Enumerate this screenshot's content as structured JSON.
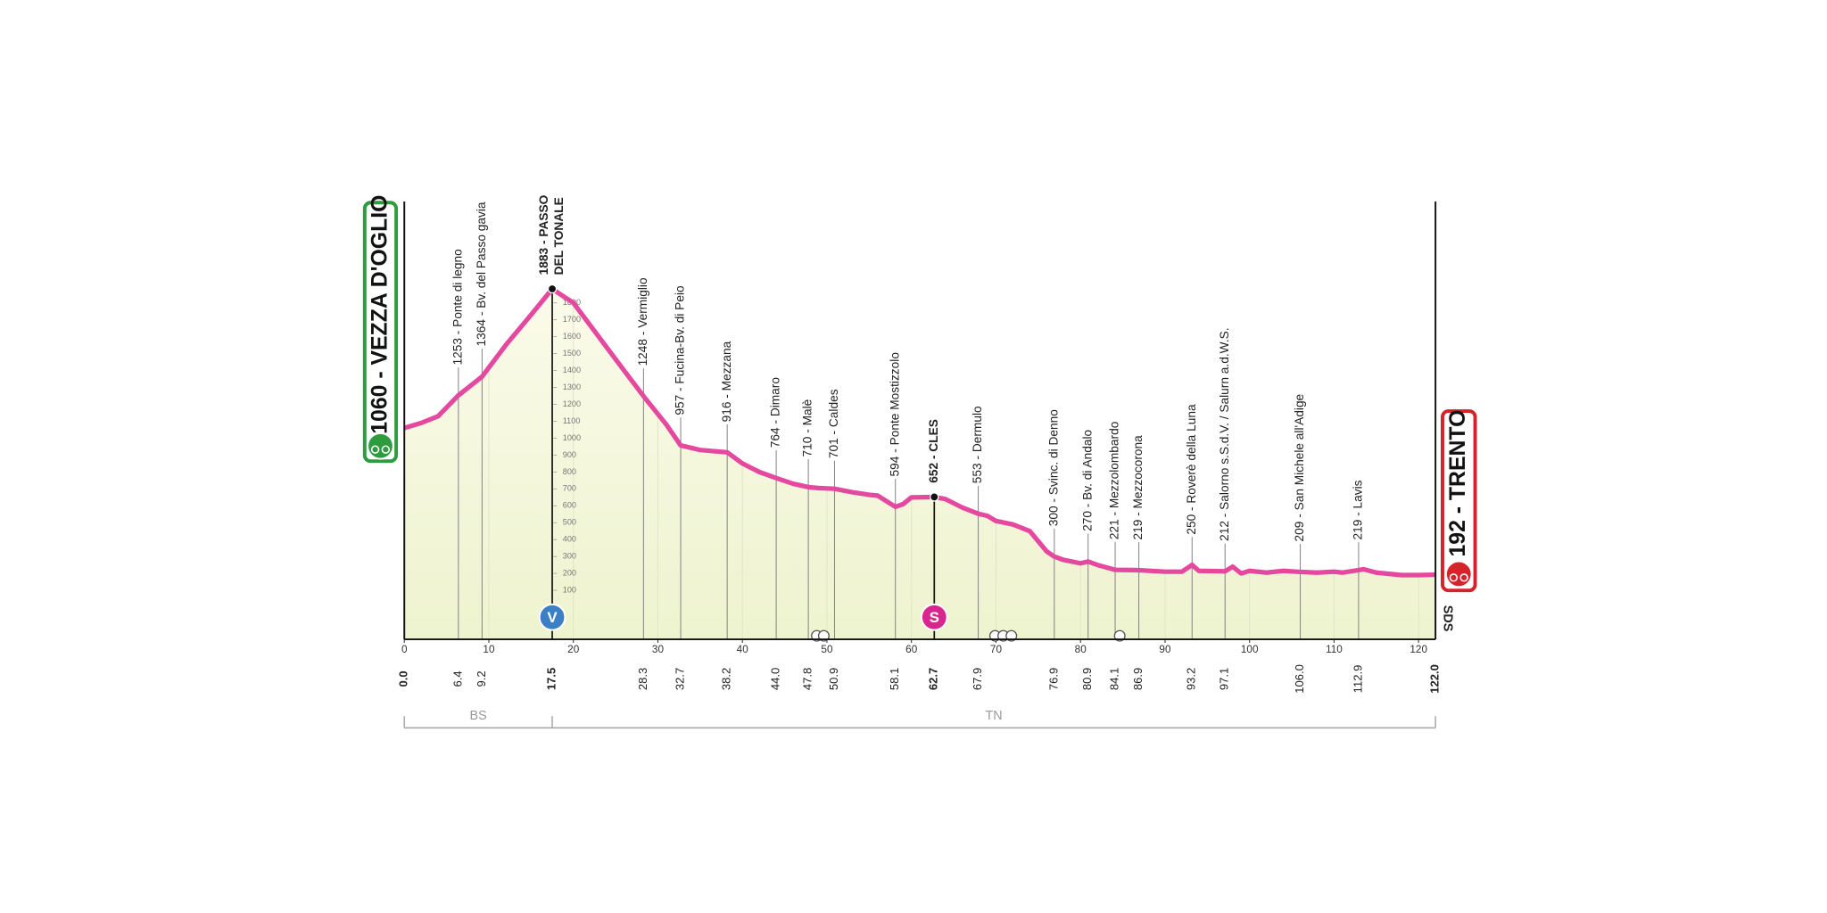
{
  "chart_data": {
    "type": "area",
    "color": "#e5489f",
    "xlim": [
      0,
      122
    ],
    "ylim": [
      -190,
      2400
    ],
    "xticks": [
      0,
      10,
      20,
      30,
      40,
      50,
      60,
      70,
      80,
      90,
      100,
      110,
      120
    ],
    "yticks": [
      100,
      200,
      300,
      400,
      500,
      600,
      700,
      800,
      900,
      1000,
      1100,
      1200,
      1300,
      1400,
      1500,
      1600,
      1700,
      1800
    ],
    "x": [
      0,
      2,
      4,
      6.4,
      9.2,
      12,
      15,
      17.5,
      20,
      23,
      26,
      28.3,
      31,
      32.7,
      35,
      38.2,
      40,
      42,
      44,
      46,
      47.8,
      49,
      50.9,
      53,
      55,
      56,
      58.1,
      59,
      60,
      62.7,
      64,
      66,
      67.9,
      69,
      70,
      72,
      74,
      76,
      76.9,
      78,
      80,
      80.9,
      82,
      84.1,
      86.9,
      90,
      92,
      93.2,
      94,
      97.1,
      98,
      99,
      100,
      102,
      104,
      106,
      108,
      110,
      111,
      112.9,
      113.5,
      115,
      118,
      120,
      122
    ],
    "values": [
      1060,
      1090,
      1130,
      1253,
      1364,
      1550,
      1730,
      1883,
      1800,
      1600,
      1400,
      1248,
      1080,
      957,
      930,
      916,
      850,
      800,
      764,
      730,
      710,
      705,
      701,
      680,
      665,
      660,
      594,
      610,
      650,
      652,
      640,
      590,
      553,
      540,
      510,
      490,
      450,
      330,
      300,
      280,
      260,
      270,
      250,
      221,
      219,
      210,
      210,
      250,
      215,
      212,
      240,
      200,
      215,
      205,
      215,
      209,
      205,
      210,
      205,
      219,
      225,
      205,
      190,
      190,
      192
    ],
    "start": {
      "km": 0,
      "km_label": "0.0",
      "label": "1060 - VEZZA D'OGLIO"
    },
    "finish": {
      "km": 122,
      "km_label": "122.0",
      "label": "192 - TRENTO"
    },
    "waypoints": [
      {
        "km": 6.4,
        "km_label": "6.4",
        "label": [
          "1253 - Ponte di legno"
        ]
      },
      {
        "km": 9.2,
        "km_label": "9.2",
        "label": [
          "1364 - Bv. del Passo gavia"
        ]
      },
      {
        "km": 17.5,
        "km_label": "17.5",
        "label": [
          "1883 - PASSO",
          "DEL TONALE"
        ],
        "bold": true,
        "icon": "V",
        "icon_color": "#3b7fc4"
      },
      {
        "km": 28.3,
        "km_label": "28.3",
        "label": [
          "1248 - Vermiglio"
        ]
      },
      {
        "km": 32.7,
        "km_label": "32.7",
        "label": [
          "957 - Fucina-Bv. di Peio"
        ]
      },
      {
        "km": 38.2,
        "km_label": "38.2",
        "label": [
          "916 - Mezzana"
        ]
      },
      {
        "km": 44,
        "km_label": "44.0",
        "label": [
          "764 - Dimaro"
        ]
      },
      {
        "km": 47.8,
        "km_label": "47.8",
        "label": [
          "710 - Malè"
        ]
      },
      {
        "km": 50.9,
        "km_label": "50.9",
        "label": [
          "701 - Caldes"
        ]
      },
      {
        "km": 58.1,
        "km_label": "58.1",
        "label": [
          "594 - Ponte Mostizzolo"
        ]
      },
      {
        "km": 62.7,
        "km_label": "62.7",
        "label": [
          "652 - CLES"
        ],
        "bold": true,
        "icon": "S",
        "icon_color": "#d9268f"
      },
      {
        "km": 67.9,
        "km_label": "67.9",
        "label": [
          "553 - Dermulo"
        ]
      },
      {
        "km": 76.9,
        "km_label": "76.9",
        "label": [
          "300 - Svinc. di Denno"
        ]
      },
      {
        "km": 80.9,
        "km_label": "80.9",
        "label": [
          "270 - Bv. di Andalo"
        ]
      },
      {
        "km": 84.1,
        "km_label": "84.1",
        "label": [
          "221 - Mezzolombardo"
        ]
      },
      {
        "km": 86.9,
        "km_label": "86.9",
        "label": [
          "219 - Mezzocorona"
        ]
      },
      {
        "km": 93.2,
        "km_label": "93.2",
        "label": [
          "250 - Roverè della Luna"
        ]
      },
      {
        "km": 97.1,
        "km_label": "97.1",
        "label": [
          "212 - Salorno s.S.d.V. / Salurn a.d.W.S."
        ]
      },
      {
        "km": 106,
        "km_label": "106.0",
        "label": [
          "209 - San Michele all'Adige"
        ]
      },
      {
        "km": 112.9,
        "km_label": "112.9",
        "label": [
          "219 - Lavis"
        ]
      }
    ],
    "regions": [
      {
        "name": "BS",
        "to": 17.5
      },
      {
        "name": "TN",
        "to": 122
      }
    ],
    "brand": "SDS"
  }
}
